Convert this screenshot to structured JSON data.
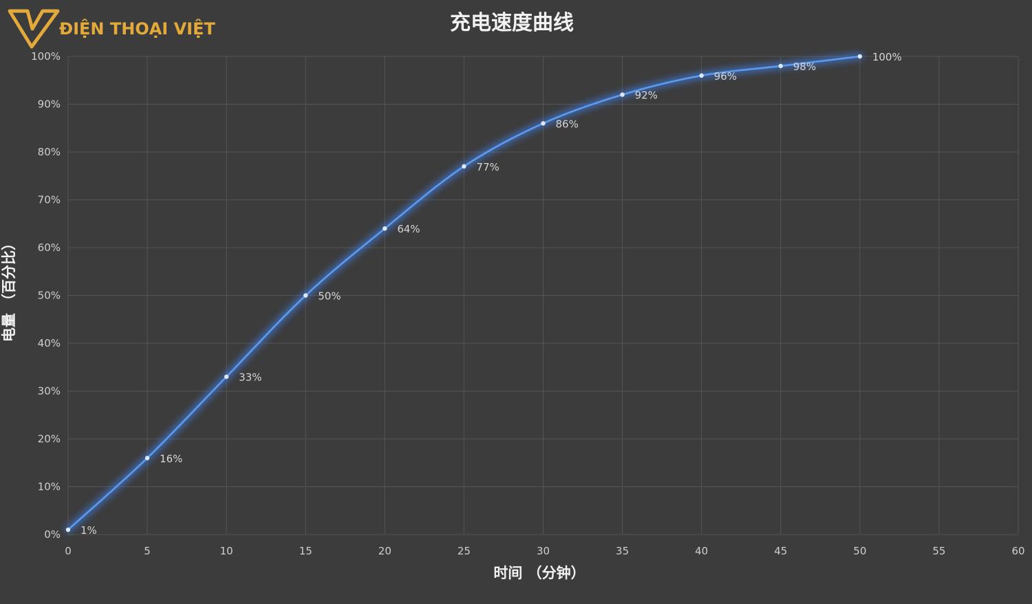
{
  "brand": {
    "name": "ĐIỆN THOẠI VIỆT",
    "color": "#e3a93a"
  },
  "colors": {
    "background": "#3c3c3c",
    "grid": "#555555",
    "line": "#5b9bf0",
    "glow": "#3f7ee6",
    "point": "#dbe8ff"
  },
  "chart_data": {
    "type": "line",
    "title": "充电速度曲线",
    "xlabel": "时间 （分钟）",
    "ylabel": "电量 （百分比）",
    "xlim": [
      0,
      60
    ],
    "ylim": [
      0,
      100
    ],
    "x_ticks": [
      0,
      5,
      10,
      15,
      20,
      25,
      30,
      35,
      40,
      45,
      50,
      55,
      60
    ],
    "y_ticks": [
      0,
      10,
      20,
      30,
      40,
      50,
      60,
      70,
      80,
      90,
      100
    ],
    "y_tick_labels": [
      "0%",
      "10%",
      "20%",
      "30%",
      "40%",
      "50%",
      "60%",
      "70%",
      "80%",
      "90%",
      "100%"
    ],
    "grid": true,
    "legend": "none",
    "x": [
      0,
      5,
      10,
      15,
      20,
      25,
      30,
      35,
      40,
      45,
      50
    ],
    "y": [
      1,
      16,
      33,
      50,
      64,
      77,
      86,
      92,
      96,
      98,
      100
    ],
    "point_labels": [
      "1%",
      "16%",
      "33%",
      "50%",
      "64%",
      "77%",
      "86%",
      "92%",
      "96%",
      "98%",
      "100%"
    ]
  }
}
